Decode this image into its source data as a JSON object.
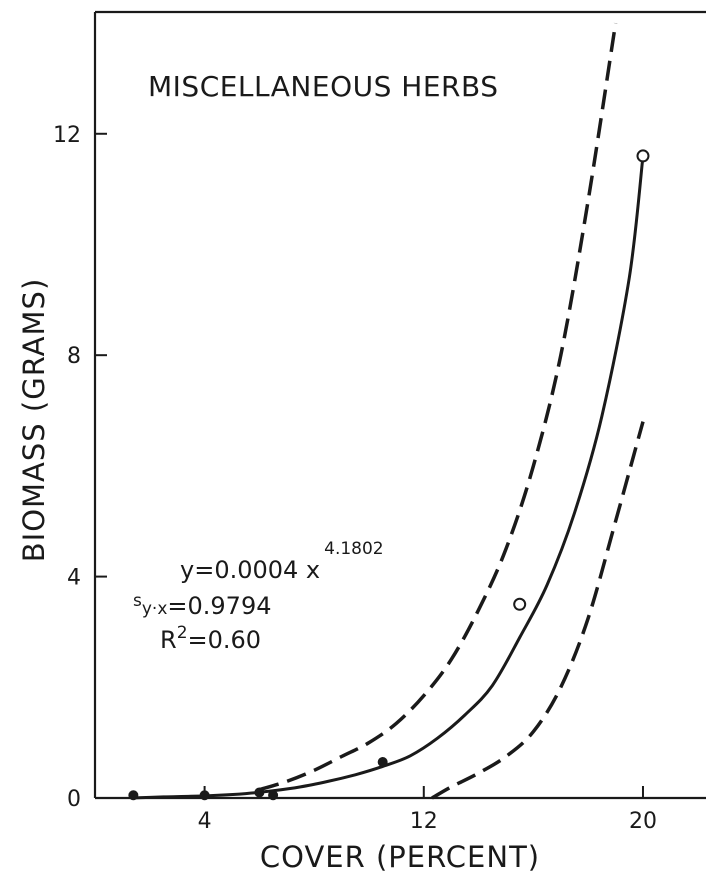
{
  "chart_data": {
    "type": "line",
    "title": "MISCELLANEOUS HERBS",
    "xlabel": "COVER (PERCENT)",
    "ylabel": "BIOMASS (GRAMS)",
    "xlim": [
      0,
      22.3
    ],
    "ylim": [
      0,
      14.2
    ],
    "x_ticks": [
      4,
      12,
      20
    ],
    "y_ticks": [
      0,
      4,
      8,
      12
    ],
    "x_tick_labels": [
      "4",
      "12",
      "20"
    ],
    "y_tick_labels": [
      "0",
      "4",
      "8",
      "12"
    ],
    "grid": false,
    "series": [
      {
        "style": "solid",
        "values_x": [
          1.3,
          2.5,
          3.5,
          4.5,
          5.5,
          6.5,
          7.5,
          8.5,
          9.5,
          10.5,
          11.5,
          12.5,
          13.5,
          14.5,
          15.5,
          16.5,
          17.5,
          18.5,
          19.5,
          20.0
        ],
        "values_y": [
          0.0,
          0.02,
          0.03,
          0.05,
          0.08,
          0.13,
          0.2,
          0.3,
          0.42,
          0.57,
          0.76,
          1.08,
          1.5,
          2.03,
          2.9,
          3.85,
          5.15,
          6.9,
          9.4,
          11.6
        ]
      },
      {
        "style": "dashed",
        "values_x": [
          6.0,
          7.0,
          8.0,
          9.0,
          10.0,
          11.0,
          12.0,
          13.0,
          14.0,
          15.0,
          16.0,
          17.0,
          18.0,
          19.0
        ],
        "values_y": [
          0.15,
          0.3,
          0.5,
          0.75,
          1.0,
          1.35,
          1.85,
          2.5,
          3.4,
          4.5,
          6.0,
          8.0,
          10.8,
          14.0
        ]
      },
      {
        "style": "dashed",
        "values_x": [
          12.3,
          13.0,
          14.0,
          15.0,
          16.0,
          17.0,
          18.0,
          19.0,
          20.0
        ],
        "values_y": [
          0.0,
          0.2,
          0.45,
          0.75,
          1.2,
          2.0,
          3.25,
          5.0,
          6.8
        ]
      }
    ],
    "points": [
      {
        "x": 1.4,
        "y": 0.05,
        "marker": "filled"
      },
      {
        "x": 4.0,
        "y": 0.05,
        "marker": "filled"
      },
      {
        "x": 6.0,
        "y": 0.1,
        "marker": "filled"
      },
      {
        "x": 6.5,
        "y": 0.05,
        "marker": "filled"
      },
      {
        "x": 10.5,
        "y": 0.65,
        "marker": "filled"
      },
      {
        "x": 15.5,
        "y": 3.5,
        "marker": "open"
      },
      {
        "x": 20.0,
        "y": 11.6,
        "marker": "open"
      }
    ]
  },
  "equation": {
    "line1_main": "y=0.0004 x",
    "line1_exponent": "4.1802",
    "line2_prefix": "s",
    "line2_subscript": "y·x",
    "line2_value": "=0.9794",
    "line3_main": "R",
    "line3_superscript": "2",
    "line3_value": "=0.60"
  },
  "colors": {
    "ink": "#1a1a1a",
    "background": "#ffffff"
  }
}
